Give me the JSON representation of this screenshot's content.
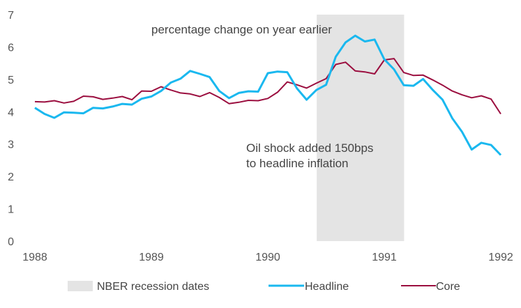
{
  "colors": {
    "headline": "#1ab8ef",
    "core": "#9b0e3f",
    "recession": "#e4e4e4",
    "axis_text": "#555555"
  },
  "chart_data": {
    "type": "line",
    "title": "",
    "xlabel": "",
    "ylabel": "",
    "xlim": [
      1988,
      1992
    ],
    "ylim": [
      0,
      7
    ],
    "x_ticks": [
      "1988",
      "1989",
      "1990",
      "1991",
      "1992"
    ],
    "y_ticks": [
      "0",
      "1",
      "2",
      "3",
      "4",
      "5",
      "6",
      "7"
    ],
    "grid": false,
    "legend_position": "bottom",
    "annotations": [
      "percentage change on year earlier",
      "Oil shock added 150bps",
      "to headline inflation"
    ],
    "recession_band": {
      "name": "NBER recession dates",
      "x_start": 1990.42,
      "x_end": 1991.17
    },
    "x": [
      1988.0,
      1988.083,
      1988.167,
      1988.25,
      1988.333,
      1988.417,
      1988.5,
      1988.583,
      1988.667,
      1988.75,
      1988.833,
      1988.917,
      1989.0,
      1989.083,
      1989.167,
      1989.25,
      1989.333,
      1989.417,
      1989.5,
      1989.583,
      1989.667,
      1989.75,
      1989.833,
      1989.917,
      1990.0,
      1990.083,
      1990.167,
      1990.25,
      1990.333,
      1990.417,
      1990.5,
      1990.583,
      1990.667,
      1990.75,
      1990.833,
      1990.917,
      1991.0,
      1991.083,
      1991.167,
      1991.25,
      1991.333,
      1991.417,
      1991.5,
      1991.583,
      1991.667,
      1991.75,
      1991.833,
      1991.917,
      1992.0
    ],
    "series": [
      {
        "name": "Headline",
        "values": [
          4.12,
          3.93,
          3.81,
          3.98,
          3.97,
          3.95,
          4.12,
          4.1,
          4.16,
          4.24,
          4.22,
          4.4,
          4.47,
          4.64,
          4.9,
          5.02,
          5.26,
          5.17,
          5.07,
          4.64,
          4.42,
          4.58,
          4.63,
          4.62,
          5.19,
          5.24,
          5.22,
          4.72,
          4.37,
          4.67,
          4.83,
          5.7,
          6.14,
          6.35,
          6.17,
          6.23,
          5.62,
          5.31,
          4.82,
          4.8,
          5.01,
          4.67,
          4.37,
          3.8,
          3.38,
          2.83,
          3.04,
          2.97,
          2.66
        ]
      },
      {
        "name": "Core",
        "values": [
          4.31,
          4.3,
          4.34,
          4.27,
          4.32,
          4.48,
          4.46,
          4.38,
          4.42,
          4.47,
          4.37,
          4.64,
          4.63,
          4.77,
          4.67,
          4.58,
          4.55,
          4.47,
          4.59,
          4.44,
          4.25,
          4.29,
          4.35,
          4.34,
          4.41,
          4.6,
          4.92,
          4.83,
          4.73,
          4.88,
          5.02,
          5.46,
          5.53,
          5.26,
          5.23,
          5.17,
          5.6,
          5.64,
          5.21,
          5.12,
          5.13,
          4.98,
          4.82,
          4.64,
          4.52,
          4.43,
          4.49,
          4.39,
          3.93
        ]
      }
    ]
  }
}
